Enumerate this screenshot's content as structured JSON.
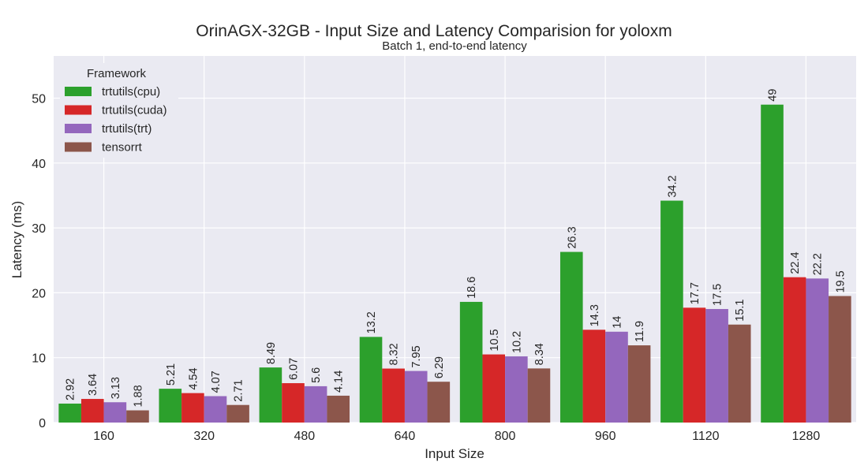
{
  "chart_data": {
    "type": "bar",
    "title": "OrinAGX-32GB - Input Size and Latency Comparision for yoloxm",
    "subtitle": "Batch 1, end-to-end latency",
    "xlabel": "Input Size",
    "ylabel": "Latency (ms)",
    "ylim": [
      0,
      56.5
    ],
    "yticks": [
      0,
      10,
      20,
      30,
      40,
      50
    ],
    "grid": true,
    "legend_title": "Framework",
    "legend_position": "top-left",
    "categories": [
      "160",
      "320",
      "480",
      "640",
      "800",
      "960",
      "1120",
      "1280"
    ],
    "series": [
      {
        "name": "trtutils(cpu)",
        "color": "#2ca02c",
        "values": [
          2.92,
          5.21,
          8.49,
          13.2,
          18.6,
          26.3,
          34.2,
          49
        ],
        "labels": [
          "2.92",
          "5.21",
          "8.49",
          "13.2",
          "18.6",
          "26.3",
          "34.2",
          "49"
        ]
      },
      {
        "name": "trtutils(cuda)",
        "color": "#d62728",
        "values": [
          3.64,
          4.54,
          6.07,
          8.32,
          10.5,
          14.3,
          17.7,
          22.4
        ],
        "labels": [
          "3.64",
          "4.54",
          "6.07",
          "8.32",
          "10.5",
          "14.3",
          "17.7",
          "22.4"
        ]
      },
      {
        "name": "trtutils(trt)",
        "color": "#9467bd",
        "values": [
          3.13,
          4.07,
          5.6,
          7.95,
          10.2,
          14,
          17.5,
          22.2
        ],
        "labels": [
          "3.13",
          "4.07",
          "5.6",
          "7.95",
          "10.2",
          "14",
          "17.5",
          "22.2"
        ]
      },
      {
        "name": "tensorrt",
        "color": "#8c564b",
        "values": [
          1.88,
          2.71,
          4.14,
          6.29,
          8.34,
          11.9,
          15.1,
          19.5
        ],
        "labels": [
          "1.88",
          "2.71",
          "4.14",
          "6.29",
          "8.34",
          "11.9",
          "15.1",
          "19.5"
        ]
      }
    ]
  }
}
